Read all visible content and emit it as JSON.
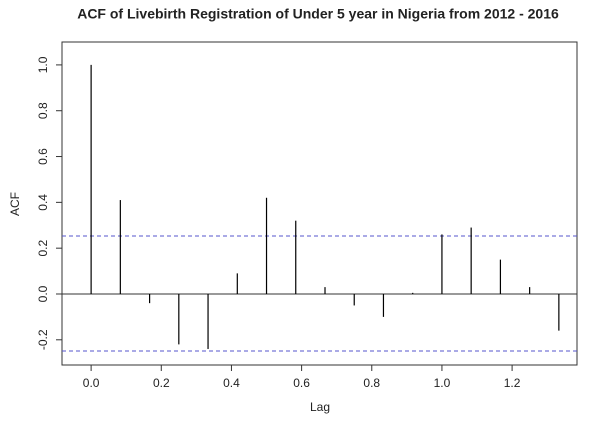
{
  "chart_data": {
    "type": "acf",
    "title": "ACF of Livebirth Registration of Under 5 year in Nigeria from 2012 - 2016",
    "x_label": "Lag",
    "y_label": "ACF",
    "x": [
      0,
      0.0833,
      0.1667,
      0.25,
      0.3333,
      0.4167,
      0.5,
      0.5833,
      0.6667,
      0.75,
      0.8333,
      0.9167,
      1.0,
      1.0833,
      1.1667,
      1.25,
      1.3333
    ],
    "values": [
      1.0,
      0.41,
      -0.04,
      -0.22,
      -0.24,
      0.09,
      0.42,
      0.32,
      0.03,
      -0.05,
      -0.1,
      0.005,
      0.26,
      0.29,
      0.15,
      0.03,
      -0.16
    ],
    "color": "#000000",
    "ci_lines": [
      0.253,
      -0.249
    ],
    "ci_color": "#5555cc",
    "xlim": [
      -0.083,
      1.385
    ],
    "ylim": [
      -0.31,
      1.1
    ],
    "xticks": [
      {
        "value": 0,
        "label": "0.0"
      },
      0.2,
      0.4,
      0.6,
      0.8,
      {
        "value": 1,
        "label": "1.0"
      },
      1.2
    ],
    "yticks": [
      -0.2,
      {
        "value": 0,
        "label": "0.0"
      },
      0.2,
      0.4,
      0.6,
      0.8,
      {
        "value": 1,
        "label": "1.0"
      }
    ],
    "zero_line": true
  }
}
